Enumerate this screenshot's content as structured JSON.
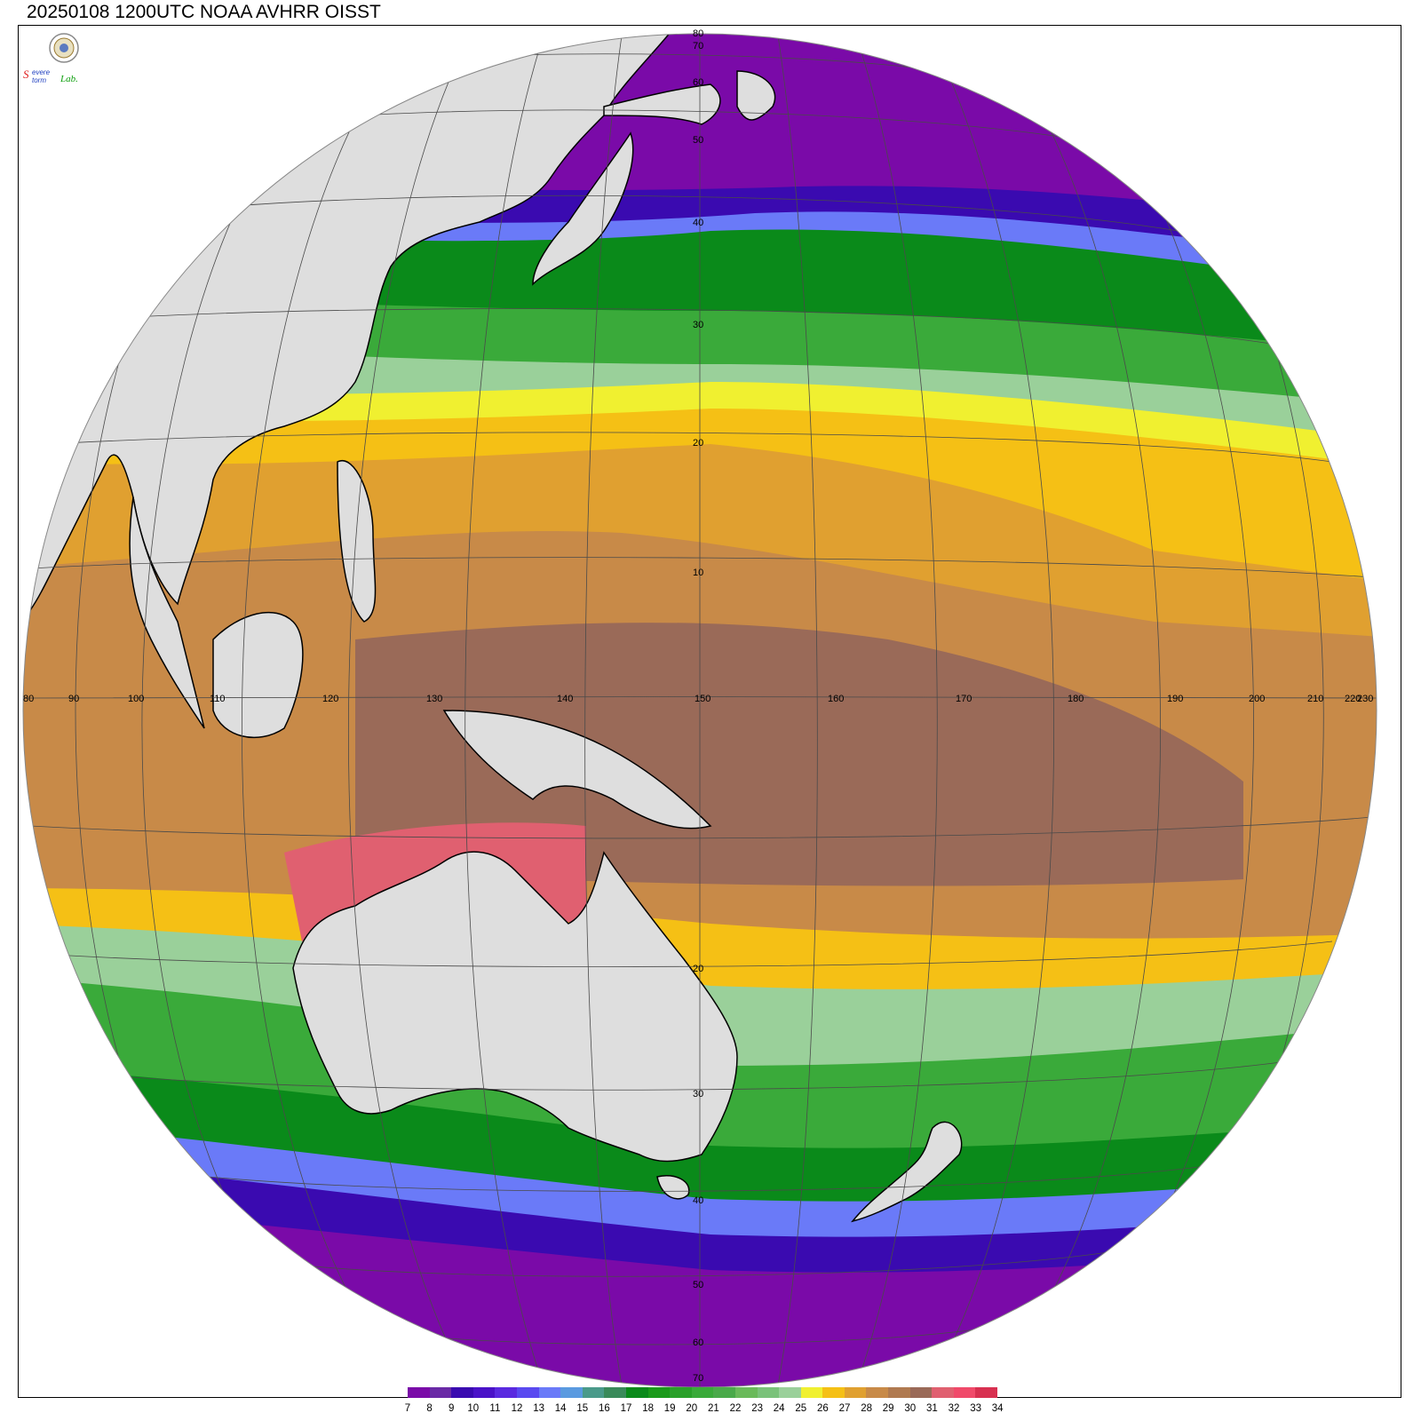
{
  "title": "20250108 1200UTC NOAA AVHRR OISST",
  "logo": {
    "icon": "severe-storm-lab-logo",
    "text": "SSevere Storm Lab."
  },
  "grid": {
    "longitude_labels": [
      "80",
      "90",
      "100",
      "110",
      "120",
      "130",
      "140",
      "150",
      "160",
      "170",
      "180",
      "190",
      "200",
      "210",
      "220",
      "230"
    ],
    "latitude_labels": [
      "80",
      "70",
      "60",
      "50",
      "40",
      "30",
      "20",
      "10",
      "20",
      "30",
      "40",
      "50",
      "60",
      "70"
    ]
  },
  "colorbar": {
    "labels": [
      "7",
      "8",
      "9",
      "10",
      "11",
      "12",
      "13",
      "14",
      "15",
      "16",
      "17",
      "18",
      "19",
      "20",
      "21",
      "22",
      "23",
      "24",
      "25",
      "26",
      "27",
      "28",
      "29",
      "30",
      "31",
      "32",
      "33",
      "34"
    ],
    "colors": [
      "#7a0aa8",
      "#6a2aa6",
      "#3a0ab0",
      "#4a12c8",
      "#5a2ae0",
      "#5a4af0",
      "#6a7af8",
      "#5a9ae0",
      "#4a9a8a",
      "#3a8a5a",
      "#0a8a1a",
      "#1a9a1a",
      "#2aa02a",
      "#3aaa3a",
      "#4aaa4a",
      "#6aba5a",
      "#7ac27a",
      "#9ad09a",
      "#f0f030",
      "#f5c015",
      "#e0a030",
      "#c88a48",
      "#b07a50",
      "#9a6a58",
      "#e06070",
      "#f04a6a",
      "#d83050"
    ],
    "unit_label": ""
  }
}
